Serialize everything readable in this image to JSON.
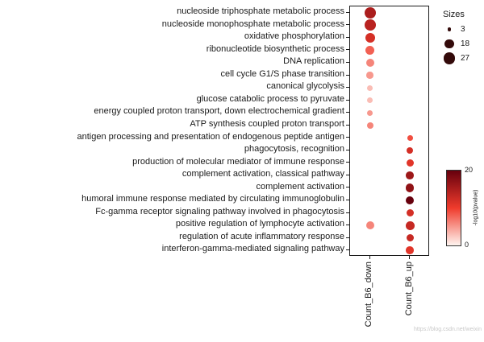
{
  "chart_data": {
    "type": "scatter",
    "subtype": "go-enrichment-dotplot",
    "grid": false,
    "x_categories": [
      "Count_B6_down",
      "Count_B6_up"
    ],
    "y_categories": [
      "nucleoside triphosphate metabolic process",
      "nucleoside monophosphate metabolic process",
      "oxidative phosphorylation",
      "ribonucleotide biosynthetic process",
      "DNA replication",
      "cell cycle G1/S phase transition",
      "canonical glycolysis",
      "glucose catabolic process to pyruvate",
      "energy coupled proton transport, down electrochemical gradient",
      "ATP synthesis coupled proton transport",
      "antigen processing and presentation of endogenous peptide antigen",
      "phagocytosis, recognition",
      "production of molecular mediator of immune response",
      "complement activation, classical pathway",
      "complement activation",
      "humoral immune response mediated by circulating immunoglobulin",
      "Fc-gamma receptor signaling pathway involved in phagocytosis",
      "positive regulation of lymphocyte activation",
      "regulation of acute inflammatory response",
      "interferon-gamma-mediated signaling pathway"
    ],
    "points": [
      {
        "term_index": 0,
        "x_index": 0,
        "count": 27,
        "neglog10_pvalue": 15
      },
      {
        "term_index": 1,
        "x_index": 0,
        "count": 26,
        "neglog10_pvalue": 14
      },
      {
        "term_index": 2,
        "x_index": 0,
        "count": 20,
        "neglog10_pvalue": 12
      },
      {
        "term_index": 3,
        "x_index": 0,
        "count": 18,
        "neglog10_pvalue": 8
      },
      {
        "term_index": 4,
        "x_index": 0,
        "count": 14,
        "neglog10_pvalue": 6
      },
      {
        "term_index": 5,
        "x_index": 0,
        "count": 10,
        "neglog10_pvalue": 5
      },
      {
        "term_index": 6,
        "x_index": 0,
        "count": 7,
        "neglog10_pvalue": 3
      },
      {
        "term_index": 7,
        "x_index": 0,
        "count": 7,
        "neglog10_pvalue": 3
      },
      {
        "term_index": 8,
        "x_index": 0,
        "count": 7,
        "neglog10_pvalue": 5
      },
      {
        "term_index": 9,
        "x_index": 0,
        "count": 9,
        "neglog10_pvalue": 6
      },
      {
        "term_index": 17,
        "x_index": 0,
        "count": 14,
        "neglog10_pvalue": 6
      },
      {
        "term_index": 10,
        "x_index": 1,
        "count": 6,
        "neglog10_pvalue": 9
      },
      {
        "term_index": 11,
        "x_index": 1,
        "count": 9,
        "neglog10_pvalue": 12
      },
      {
        "term_index": 12,
        "x_index": 1,
        "count": 12,
        "neglog10_pvalue": 11
      },
      {
        "term_index": 13,
        "x_index": 1,
        "count": 13,
        "neglog10_pvalue": 16
      },
      {
        "term_index": 14,
        "x_index": 1,
        "count": 15,
        "neglog10_pvalue": 17
      },
      {
        "term_index": 15,
        "x_index": 1,
        "count": 15,
        "neglog10_pvalue": 20
      },
      {
        "term_index": 16,
        "x_index": 1,
        "count": 12,
        "neglog10_pvalue": 12
      },
      {
        "term_index": 17,
        "x_index": 1,
        "count": 16,
        "neglog10_pvalue": 13
      },
      {
        "term_index": 18,
        "x_index": 1,
        "count": 12,
        "neglog10_pvalue": 13
      },
      {
        "term_index": 19,
        "x_index": 1,
        "count": 13,
        "neglog10_pvalue": 11
      }
    ],
    "size_legend": {
      "title": "Sizes",
      "values": [
        3,
        18,
        27
      ],
      "dot_color": "#330a0a"
    },
    "color_legend": {
      "title": "-log10(pvalue)",
      "min": 0,
      "max": 20,
      "stops": [
        "#FFF5F0",
        "#EF3B2C",
        "#67000D"
      ]
    }
  },
  "watermark": "https://blog.csdn.net/weixin"
}
